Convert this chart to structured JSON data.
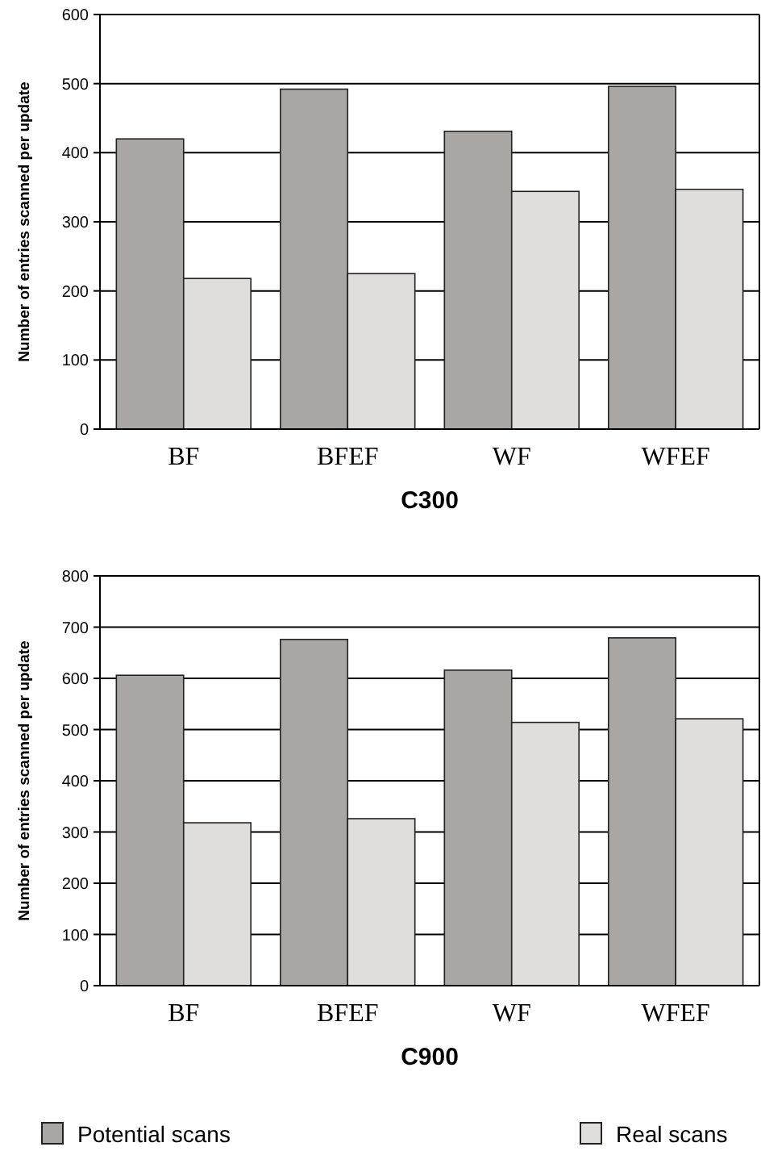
{
  "chart_data": [
    {
      "type": "bar",
      "title": "C300",
      "ylabel": "Number of entries scanned per update",
      "categories": [
        "BF",
        "BFEF",
        "WF",
        "WFEF"
      ],
      "series": [
        {
          "color": "#a9a6a3",
          "values": [
            420,
            492,
            431,
            496
          ]
        },
        {
          "color": "#e0dedb",
          "values": [
            218,
            225,
            344,
            347
          ]
        }
      ],
      "ylim": [
        0,
        600
      ],
      "yticks": [
        0,
        100,
        200,
        300,
        400,
        500,
        600
      ],
      "grid": "y",
      "legend": false
    },
    {
      "type": "bar",
      "title": "C900",
      "ylabel": "Number of entries scanned per update",
      "categories": [
        "BF",
        "BFEF",
        "WF",
        "WFEF"
      ],
      "series": [
        {
          "name": "Potential scans",
          "color": "#a9a6a3",
          "values": [
            606,
            676,
            616,
            679
          ]
        },
        {
          "name": "Real scans",
          "color": "#e0dedb",
          "values": [
            318,
            326,
            514,
            521
          ]
        }
      ],
      "ylim": [
        0,
        800
      ],
      "yticks": [
        0,
        100,
        200,
        300,
        400,
        500,
        600,
        700,
        800
      ],
      "grid": "y",
      "legend": "bottom"
    }
  ]
}
